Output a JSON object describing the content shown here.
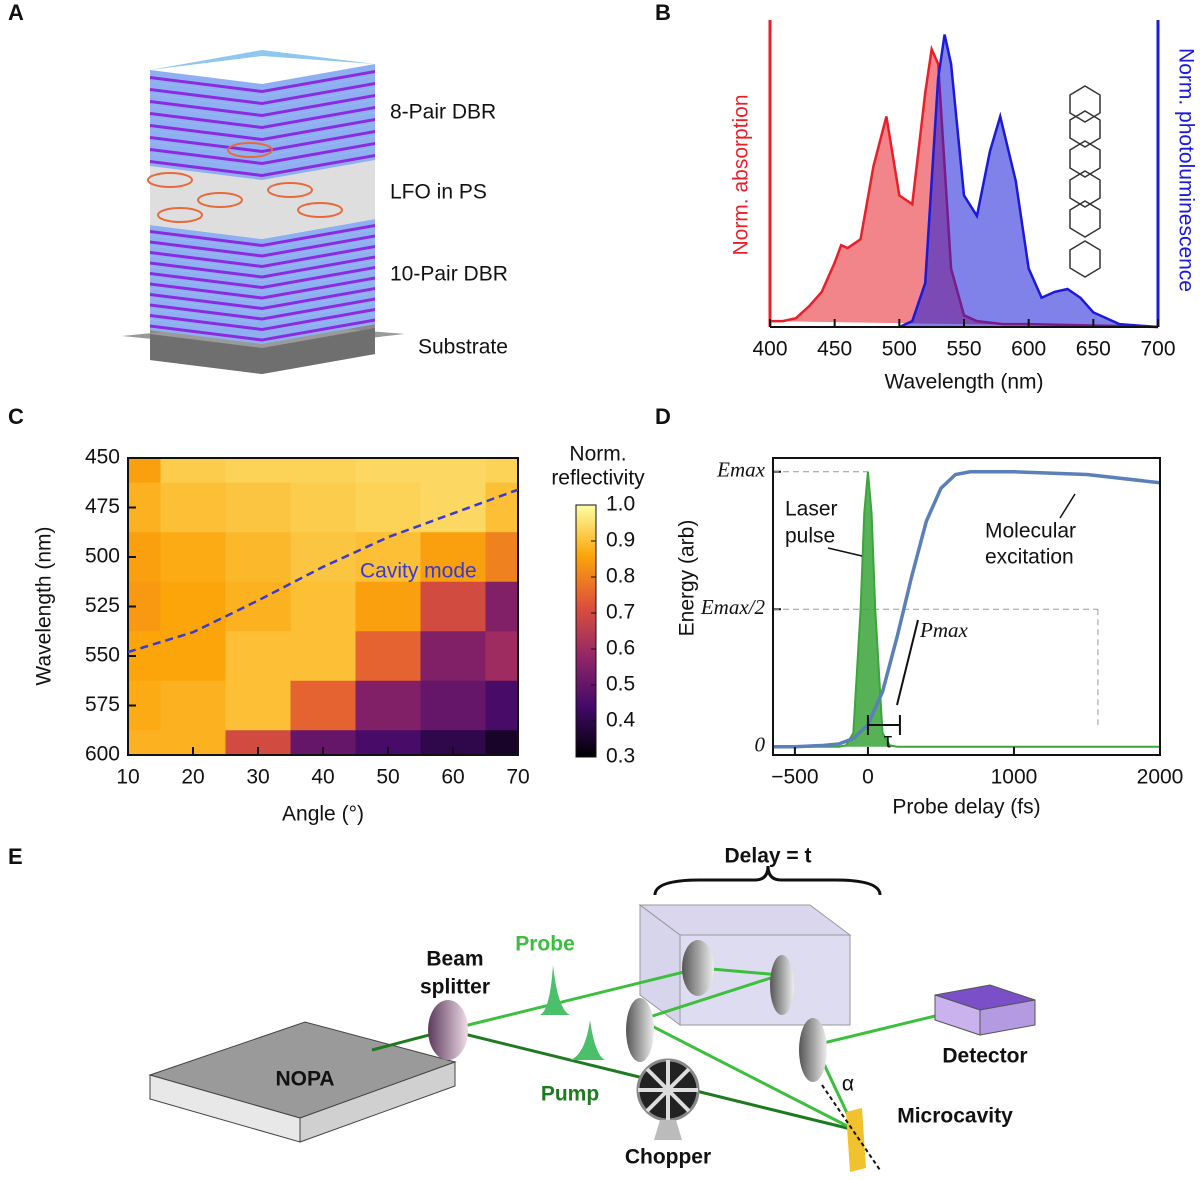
{
  "panel_labels": [
    "A",
    "B",
    "C",
    "D",
    "E"
  ],
  "panel_a": {
    "labels": [
      "8-Pair DBR",
      "LFO in PS",
      "10-Pair DBR",
      "Substrate"
    ]
  },
  "chart_data": [
    {
      "type": "area",
      "xlabel": "Wavelength (nm)",
      "ylabel": "Norm. absorption",
      "y2label": "Norm. photoluminescence",
      "xlim": [
        400,
        700
      ],
      "xticks": [
        400,
        450,
        500,
        550,
        600,
        650,
        700
      ],
      "ylim": [
        0,
        1.05
      ],
      "y2lim": [
        0,
        1.05
      ],
      "series": [
        {
          "color": "#e8202a",
          "x": [
            400,
            410,
            420,
            430,
            440,
            450,
            455,
            460,
            470,
            480,
            490,
            500,
            510,
            520,
            525,
            530,
            535,
            540,
            550,
            560,
            580,
            600,
            700
          ],
          "values": [
            0.02,
            0.02,
            0.03,
            0.07,
            0.12,
            0.22,
            0.28,
            0.27,
            0.3,
            0.55,
            0.72,
            0.45,
            0.42,
            0.8,
            0.95,
            0.9,
            0.55,
            0.2,
            0.04,
            0.02,
            0.01,
            0.01,
            0
          ]
        },
        {
          "color": "#1a1ad8",
          "axis": "y2",
          "x": [
            500,
            510,
            520,
            530,
            535,
            540,
            550,
            560,
            570,
            578,
            590,
            600,
            610,
            620,
            630,
            640,
            650,
            670,
            700
          ],
          "values": [
            0,
            0.02,
            0.15,
            0.85,
            1.0,
            0.9,
            0.45,
            0.38,
            0.6,
            0.72,
            0.5,
            0.2,
            0.1,
            0.12,
            0.13,
            0.1,
            0.05,
            0.01,
            0
          ]
        }
      ]
    },
    {
      "type": "heatmap",
      "xlabel": "Angle (°)",
      "ylabel": "Wavelength (nm)",
      "xlim": [
        10,
        70
      ],
      "xticks": [
        10,
        20,
        30,
        40,
        50,
        60,
        70
      ],
      "ylim": [
        600,
        450
      ],
      "yticks": [
        450,
        475,
        500,
        525,
        550,
        575,
        600
      ],
      "x": [
        10,
        20,
        30,
        40,
        50,
        60,
        70
      ],
      "y": [
        450,
        475,
        500,
        525,
        550,
        575,
        600
      ],
      "z": [
        [
          0.85,
          0.92,
          0.93,
          0.93,
          0.94,
          0.94,
          0.93
        ],
        [
          0.88,
          0.9,
          0.91,
          0.92,
          0.93,
          0.94,
          0.9
        ],
        [
          0.85,
          0.87,
          0.89,
          0.91,
          0.9,
          0.85,
          0.8
        ],
        [
          0.84,
          0.86,
          0.88,
          0.9,
          0.85,
          0.7,
          0.55
        ],
        [
          0.86,
          0.86,
          0.9,
          0.9,
          0.75,
          0.55,
          0.6
        ],
        [
          0.87,
          0.88,
          0.9,
          0.75,
          0.55,
          0.5,
          0.45
        ],
        [
          0.88,
          0.88,
          0.7,
          0.5,
          0.45,
          0.4,
          0.35
        ]
      ],
      "colormap": [
        "#000004",
        "#420a68",
        "#932667",
        "#dd513a",
        "#fca50a",
        "#fcffa4"
      ],
      "colorbar_label": [
        "Norm.",
        "reflectivity"
      ],
      "clim": [
        0.3,
        1.0
      ],
      "cticks": [
        0.3,
        0.4,
        0.5,
        0.6,
        0.7,
        0.8,
        0.9,
        {
          "value": 1.0,
          "label": "1.0"
        }
      ],
      "cavity_mode": {
        "label": "Cavity mode",
        "color": "#3a3ad0",
        "x": [
          10,
          20,
          30,
          40,
          50,
          60,
          70
        ],
        "values": [
          548,
          538,
          522,
          505,
          490,
          478,
          466
        ]
      }
    },
    {
      "type": "line",
      "xlabel": "Probe delay (fs)",
      "ylabel": "Energy (arb)",
      "xlim": [
        -650,
        2000
      ],
      "xticks": [
        {
          "value": -500,
          "label": "−500"
        },
        0,
        1000,
        2000
      ],
      "ylim": [
        -0.03,
        1.05
      ],
      "yticks": [
        0,
        {
          "value": 0.5,
          "label": "Emax/2"
        },
        {
          "value": 1,
          "label": "Emax"
        }
      ],
      "series": [
        {
          "color": "#3aa53a",
          "area": true,
          "x": [
            -650,
            -200,
            -150,
            -100,
            -50,
            -25,
            0,
            25,
            50,
            100,
            150,
            200,
            2000
          ],
          "values": [
            0,
            0,
            0.005,
            0.05,
            0.5,
            0.85,
            1.0,
            0.85,
            0.5,
            0.05,
            0.005,
            0,
            0
          ]
        },
        {
          "color": "#5b7fb8",
          "x": [
            -650,
            -500,
            -300,
            -200,
            -100,
            0,
            100,
            200,
            300,
            400,
            500,
            600,
            700,
            800,
            1000,
            1500,
            2000
          ],
          "values": [
            0,
            0,
            0.005,
            0.01,
            0.03,
            0.08,
            0.2,
            0.4,
            0.62,
            0.82,
            0.94,
            0.99,
            1.0,
            1.0,
            1.0,
            0.99,
            0.96
          ]
        }
      ],
      "annotations": [
        [
          "Laser",
          "pulse"
        ],
        [
          "Molecular",
          "excitation"
        ],
        "Pmax",
        "τ"
      ]
    }
  ],
  "panel_e": {
    "delay": "Delay = t",
    "beam_splitter": [
      "Beam",
      "splitter"
    ],
    "probe": "Probe",
    "pump": "Pump",
    "nopa": "NOPA",
    "chopper": "Chopper",
    "detector": "Detector",
    "microcavity": "Microcavity",
    "alpha": "α"
  }
}
